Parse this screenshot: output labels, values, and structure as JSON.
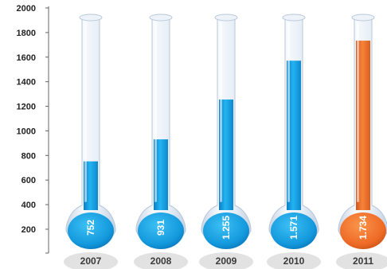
{
  "chart_data": {
    "type": "bar",
    "title": "",
    "xlabel": "",
    "ylabel": "",
    "ylim": [
      0,
      2000
    ],
    "y_ticks": [
      200,
      400,
      600,
      800,
      1000,
      1200,
      1400,
      1600,
      1800,
      2000
    ],
    "categories": [
      "2007",
      "2008",
      "2009",
      "2010",
      "2011"
    ],
    "values": [
      752,
      931,
      1255,
      1571,
      1734
    ],
    "value_labels": [
      "752",
      "931",
      "1.255",
      "1.571",
      "1.734"
    ],
    "grid": false,
    "legend": "none",
    "colors": {
      "default": "#14a0e0",
      "highlight": "#f07324",
      "highlight_index": 4,
      "glass": "#dfe8f3",
      "label_plate": "#e2e2e2"
    }
  }
}
